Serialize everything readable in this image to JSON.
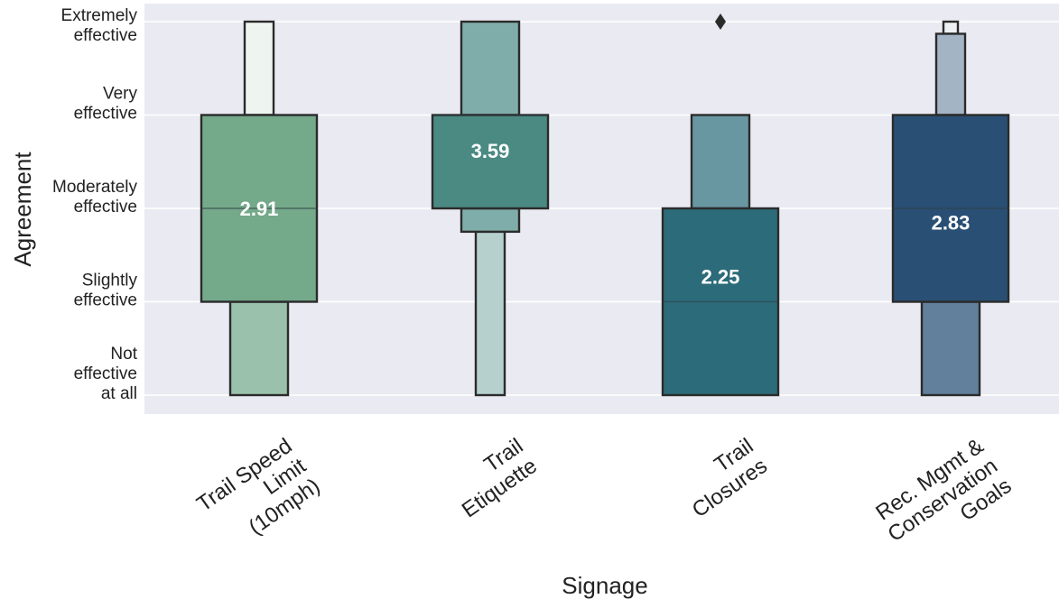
{
  "chart_data": {
    "type": "boxen",
    "title": "",
    "xlabel": "Signage",
    "ylabel": "Agreement",
    "ylim": [
      1,
      5
    ],
    "grid": true,
    "y_ticks": [
      {
        "value": 1,
        "lines": [
          "Not",
          "effective",
          "at all"
        ]
      },
      {
        "value": 2,
        "lines": [
          "Slightly",
          "effective"
        ]
      },
      {
        "value": 3,
        "lines": [
          "Moderately",
          "effective"
        ]
      },
      {
        "value": 4,
        "lines": [
          "Very",
          "effective"
        ]
      },
      {
        "value": 5,
        "lines": [
          "Extremely",
          "effective"
        ]
      }
    ],
    "categories": [
      {
        "lines": [
          "Trail Speed",
          "Limit",
          "(10mph)"
        ]
      },
      {
        "lines": [
          "Trail",
          "Etiquette"
        ]
      },
      {
        "lines": [
          "Trail",
          "Closures"
        ]
      },
      {
        "lines": [
          "Rec. Mgmt &",
          "Conservation",
          "Goals"
        ]
      }
    ],
    "series": [
      {
        "mean_label": "2.91",
        "median": 3,
        "label_value": 3.0,
        "boxes": [
          {
            "low": 2,
            "high": 4,
            "level": 0,
            "color": "#74a98a"
          },
          {
            "low": 1,
            "high": 2,
            "level": 1,
            "color": "#99c1ab"
          },
          {
            "low": 4,
            "high": 5,
            "level": 2,
            "color": "#eef5f0"
          }
        ],
        "outliers": []
      },
      {
        "mean_label": "3.59",
        "median": 4,
        "label_value": 3.62,
        "boxes": [
          {
            "low": 3,
            "high": 4,
            "level": 0,
            "color": "#4a8a83"
          },
          {
            "low": 2.75,
            "high": 3,
            "level": 1,
            "color": "#7fadaa"
          },
          {
            "low": 4,
            "high": 5,
            "level": 1,
            "color": "#7fadaa"
          },
          {
            "low": 1,
            "high": 2.75,
            "level": 2,
            "color": "#b6d0ce"
          }
        ],
        "outliers": []
      },
      {
        "mean_label": "2.25",
        "median": 2,
        "label_value": 2.27,
        "boxes": [
          {
            "low": 1,
            "high": 3,
            "level": 0,
            "color": "#2c6b79"
          },
          {
            "low": 3,
            "high": 4,
            "level": 1,
            "color": "#6897a2"
          }
        ],
        "outliers": [
          5
        ]
      },
      {
        "mean_label": "2.83",
        "median": 3,
        "label_value": 2.85,
        "boxes": [
          {
            "low": 2,
            "high": 4,
            "level": 0,
            "color": "#2a4f74"
          },
          {
            "low": 1,
            "high": 2,
            "level": 1,
            "color": "#627f9b"
          },
          {
            "low": 4,
            "high": 4.87,
            "level": 2,
            "color": "#a3b5c5"
          },
          {
            "low": 4.87,
            "high": 5,
            "level": 3,
            "color": "#eef1f4"
          }
        ],
        "outliers": []
      }
    ]
  }
}
